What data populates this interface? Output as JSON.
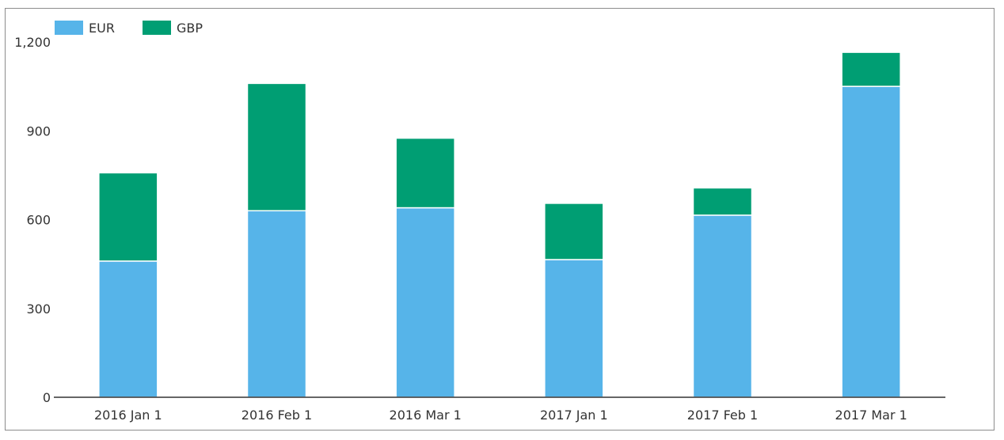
{
  "chart_data": {
    "type": "bar",
    "stacked": true,
    "categories": [
      "2016 Jan 1",
      "2016 Feb 1",
      "2016 Mar 1",
      "2017 Jan 1",
      "2017 Feb 1",
      "2017 Mar 1"
    ],
    "series": [
      {
        "name": "EUR",
        "color": "#56b4e9",
        "values": [
          460,
          630,
          640,
          465,
          615,
          1050
        ]
      },
      {
        "name": "GBP",
        "color": "#009e73",
        "values": [
          298,
          430,
          235,
          190,
          92,
          115
        ]
      }
    ],
    "yticks": [
      "0",
      "300",
      "600",
      "900",
      "1,200"
    ],
    "ytick_values": [
      0,
      300,
      600,
      900,
      1200
    ],
    "ylim": [
      0,
      1200
    ],
    "legend_position": "top-left",
    "grid": false
  }
}
